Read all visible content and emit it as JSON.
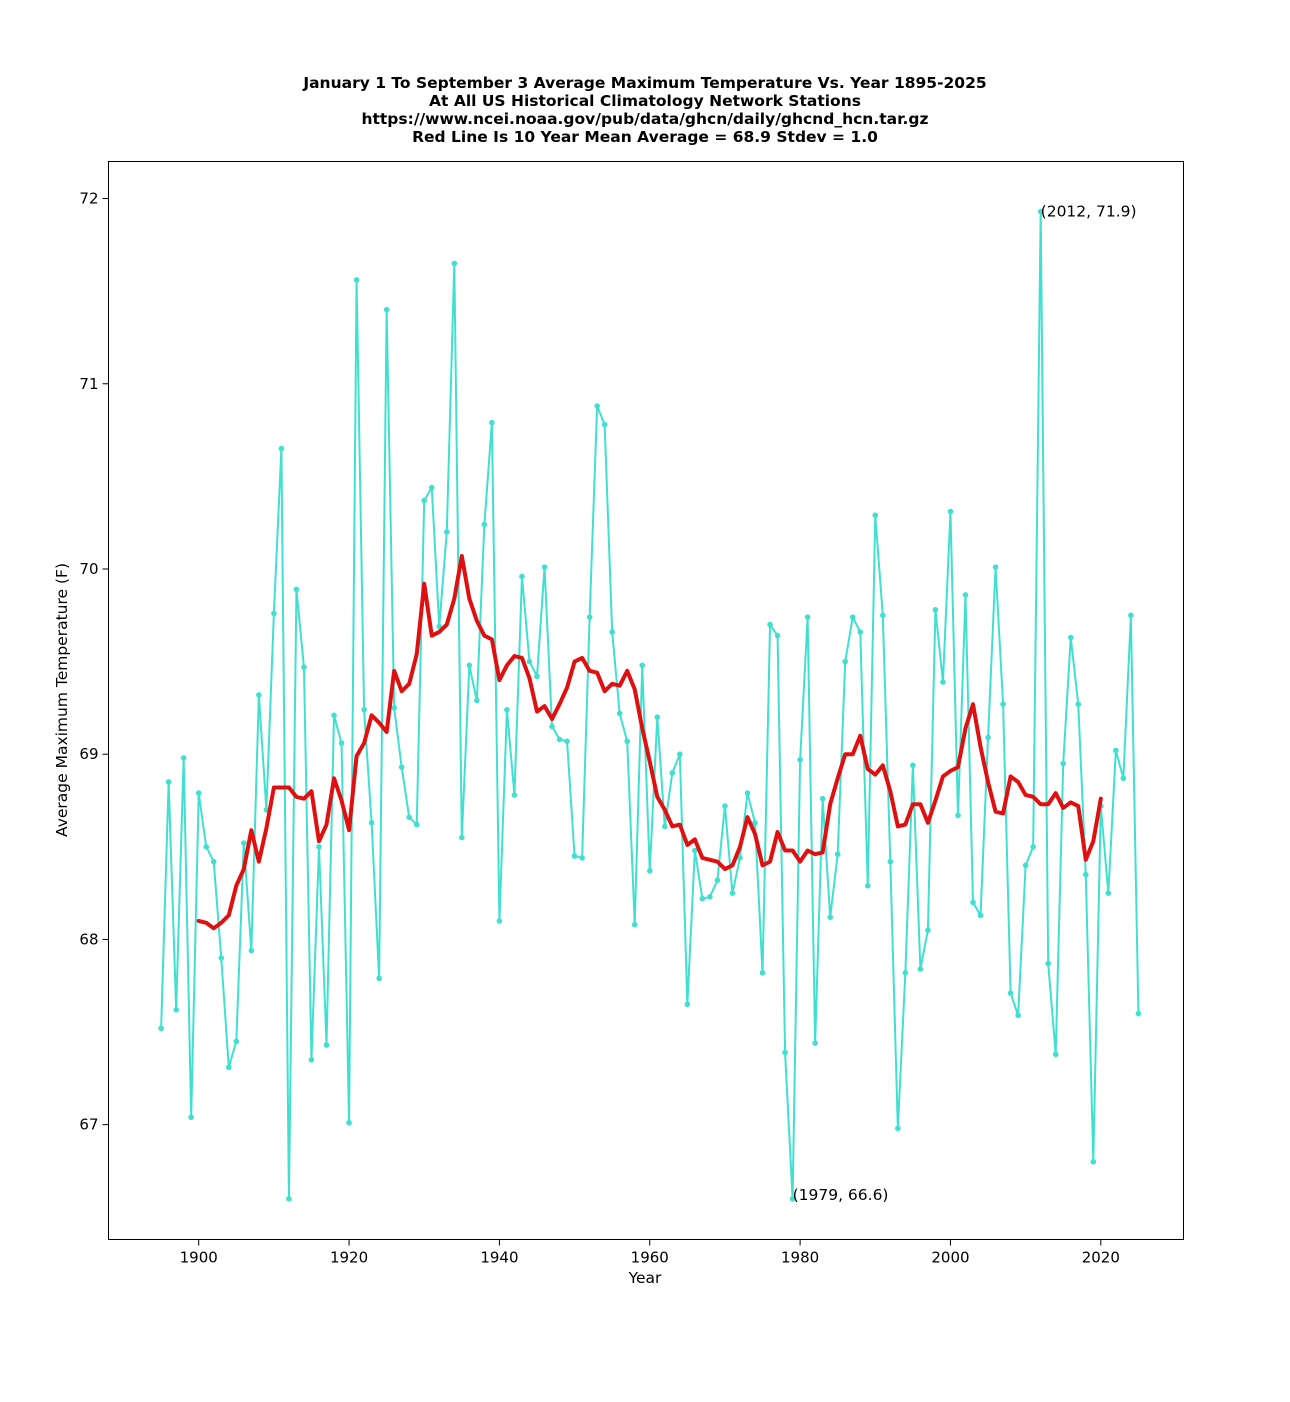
{
  "chart_data": {
    "type": "line",
    "title_lines": [
      "January 1 To September 3 Average Maximum Temperature Vs. Year 1895-2025",
      "At All US Historical Climatology Network Stations",
      "https://www.ncei.noaa.gov/pub/data/ghcn/daily/ghcnd_hcn.tar.gz",
      "Red Line Is 10 Year Mean  Average = 68.9 Stdev = 1.0"
    ],
    "xlabel": "Year",
    "ylabel": "Average Maximum Temperature (F)",
    "xlim": [
      1888,
      2031
    ],
    "ylim": [
      66.38,
      72.2
    ],
    "xticks": [
      1900,
      1920,
      1940,
      1960,
      1980,
      2000,
      2020
    ],
    "yticks": [
      67,
      68,
      69,
      70,
      71,
      72
    ],
    "grid": false,
    "annotations": [
      {
        "text": "(2012, 71.9)",
        "x": 2012,
        "y": 71.93
      },
      {
        "text": "(1979, 66.6)",
        "x": 1979,
        "y": 66.62
      }
    ],
    "series": [
      {
        "role": "annual",
        "color": "#40e0d0",
        "x_start": 1895,
        "values": [
          67.52,
          68.85,
          67.62,
          68.98,
          67.04,
          68.79,
          68.5,
          68.42,
          67.9,
          67.31,
          67.45,
          68.52,
          67.94,
          69.32,
          68.7,
          69.76,
          70.65,
          66.6,
          69.89,
          69.47,
          67.35,
          68.5,
          67.43,
          69.21,
          69.06,
          67.01,
          71.56,
          69.24,
          68.63,
          67.79,
          71.4,
          69.25,
          68.93,
          68.66,
          68.62,
          70.37,
          70.44,
          69.69,
          70.2,
          71.65,
          68.55,
          69.48,
          69.29,
          70.24,
          70.79,
          68.1,
          69.24,
          68.78,
          69.96,
          69.5,
          69.42,
          70.01,
          69.15,
          69.08,
          69.07,
          68.45,
          68.44,
          69.74,
          70.88,
          70.78,
          69.66,
          69.22,
          69.07,
          68.08,
          69.48,
          68.37,
          69.2,
          68.61,
          68.9,
          69.0,
          67.65,
          68.48,
          68.22,
          68.23,
          68.32,
          68.72,
          68.25,
          68.44,
          68.79,
          68.63,
          67.82,
          69.7,
          69.64,
          67.39,
          66.6,
          68.97,
          69.74,
          67.44,
          68.76,
          68.12,
          68.46,
          69.5,
          69.74,
          69.66,
          68.29,
          70.29,
          69.75,
          68.42,
          66.98,
          67.82,
          68.94,
          67.84,
          68.05,
          69.78,
          69.39,
          70.31,
          68.67,
          69.86,
          68.2,
          68.13,
          69.09,
          70.01,
          69.27,
          67.71,
          67.59,
          68.4,
          68.5,
          71.93,
          67.87,
          67.38,
          68.95,
          69.63,
          69.27,
          68.35,
          66.8,
          68.72,
          68.25,
          69.02,
          68.87,
          69.75,
          67.6
        ]
      },
      {
        "role": "10-year mean",
        "color": "#e01010",
        "x_start": 1900,
        "values": [
          68.1,
          68.09,
          68.06,
          68.09,
          68.13,
          68.29,
          68.38,
          68.59,
          68.42,
          68.6,
          68.82,
          68.82,
          68.82,
          68.77,
          68.76,
          68.8,
          68.53,
          68.62,
          68.87,
          68.75,
          68.59,
          68.99,
          69.06,
          69.21,
          69.17,
          69.12,
          69.45,
          69.34,
          69.38,
          69.54,
          69.92,
          69.64,
          69.66,
          69.7,
          69.84,
          70.07,
          69.84,
          69.72,
          69.64,
          69.62,
          69.4,
          69.48,
          69.53,
          69.52,
          69.41,
          69.23,
          69.26,
          69.19,
          69.27,
          69.36,
          69.5,
          69.52,
          69.45,
          69.44,
          69.34,
          69.38,
          69.37,
          69.45,
          69.35,
          69.14,
          68.96,
          68.77,
          68.7,
          68.61,
          68.62,
          68.51,
          68.54,
          68.44,
          68.43,
          68.42,
          68.38,
          68.4,
          68.5,
          68.66,
          68.57,
          68.4,
          68.42,
          68.58,
          68.48,
          68.48,
          68.42,
          68.48,
          68.46,
          68.47,
          68.73,
          68.87,
          69.0,
          69.0,
          69.1,
          68.92,
          68.89,
          68.94,
          68.8,
          68.61,
          68.62,
          68.73,
          68.73,
          68.63,
          68.75,
          68.88,
          68.91,
          68.93,
          69.14,
          69.27,
          69.04,
          68.85,
          68.69,
          68.68,
          68.88,
          68.85,
          68.78,
          68.77,
          68.73,
          68.73,
          68.79,
          68.71,
          68.74,
          68.72,
          68.43,
          68.53,
          68.76
        ]
      }
    ]
  }
}
